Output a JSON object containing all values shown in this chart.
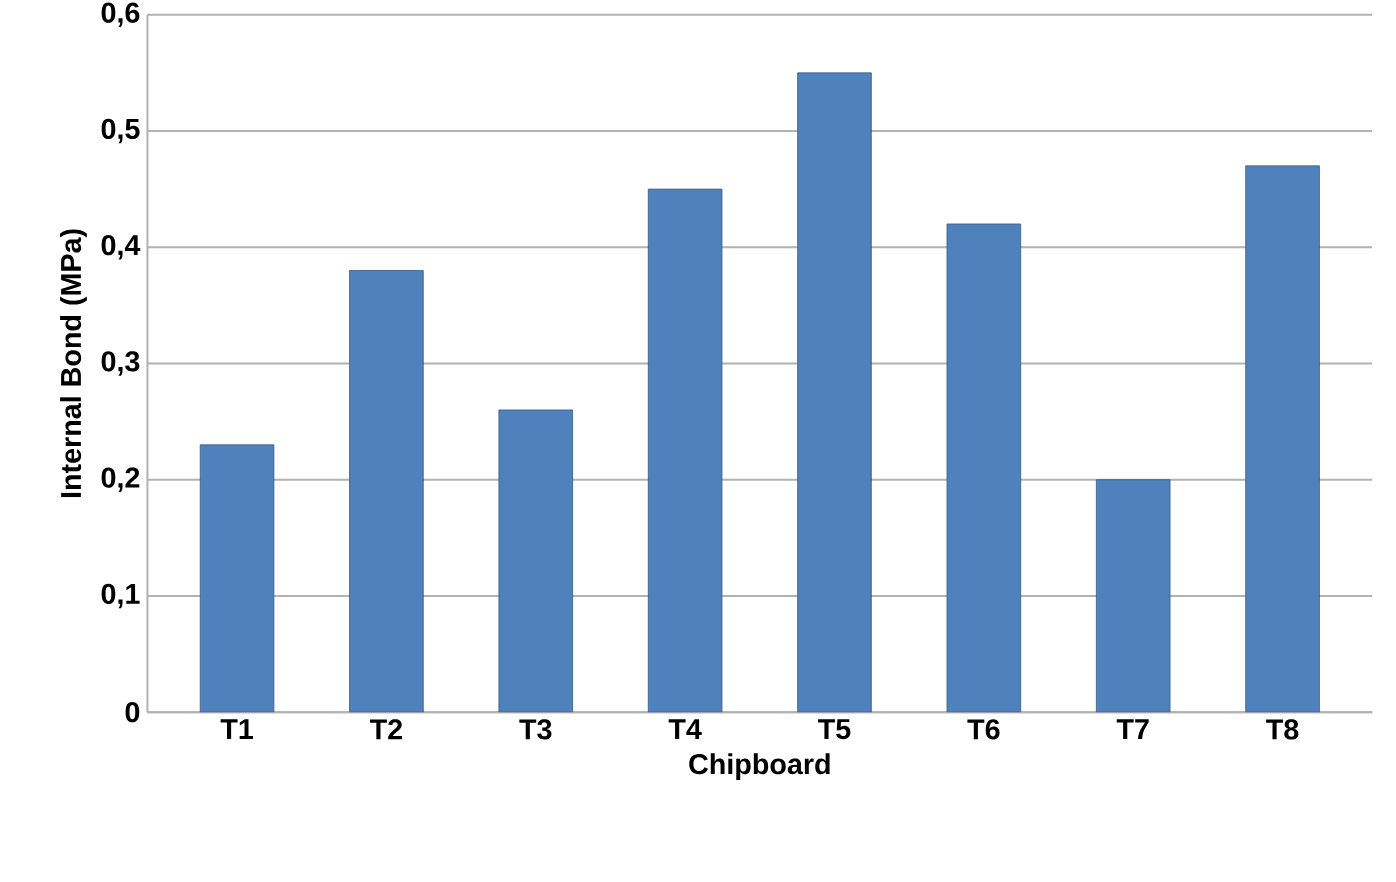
{
  "chart_data": {
    "type": "bar",
    "xlabel": "Chipboard",
    "ylabel": "Internal Bond (MPa)",
    "categories": [
      "T1",
      "T2",
      "T3",
      "T4",
      "T5",
      "T6",
      "T7",
      "T8"
    ],
    "values": [
      0.23,
      0.38,
      0.26,
      0.45,
      0.55,
      0.42,
      0.2,
      0.47
    ],
    "color": "#4f81bd",
    "ylim": [
      0,
      0.6
    ],
    "yticks": [
      0,
      {
        "value": 0.1,
        "label": "0,1"
      },
      {
        "value": 0.2,
        "label": "0,2"
      },
      {
        "value": 0.3,
        "label": "0,3"
      },
      {
        "value": 0.4,
        "label": "0,4"
      },
      {
        "value": 0.5,
        "label": "0,5"
      },
      {
        "value": 0.6,
        "label": "0,6"
      }
    ],
    "grid": "y"
  }
}
